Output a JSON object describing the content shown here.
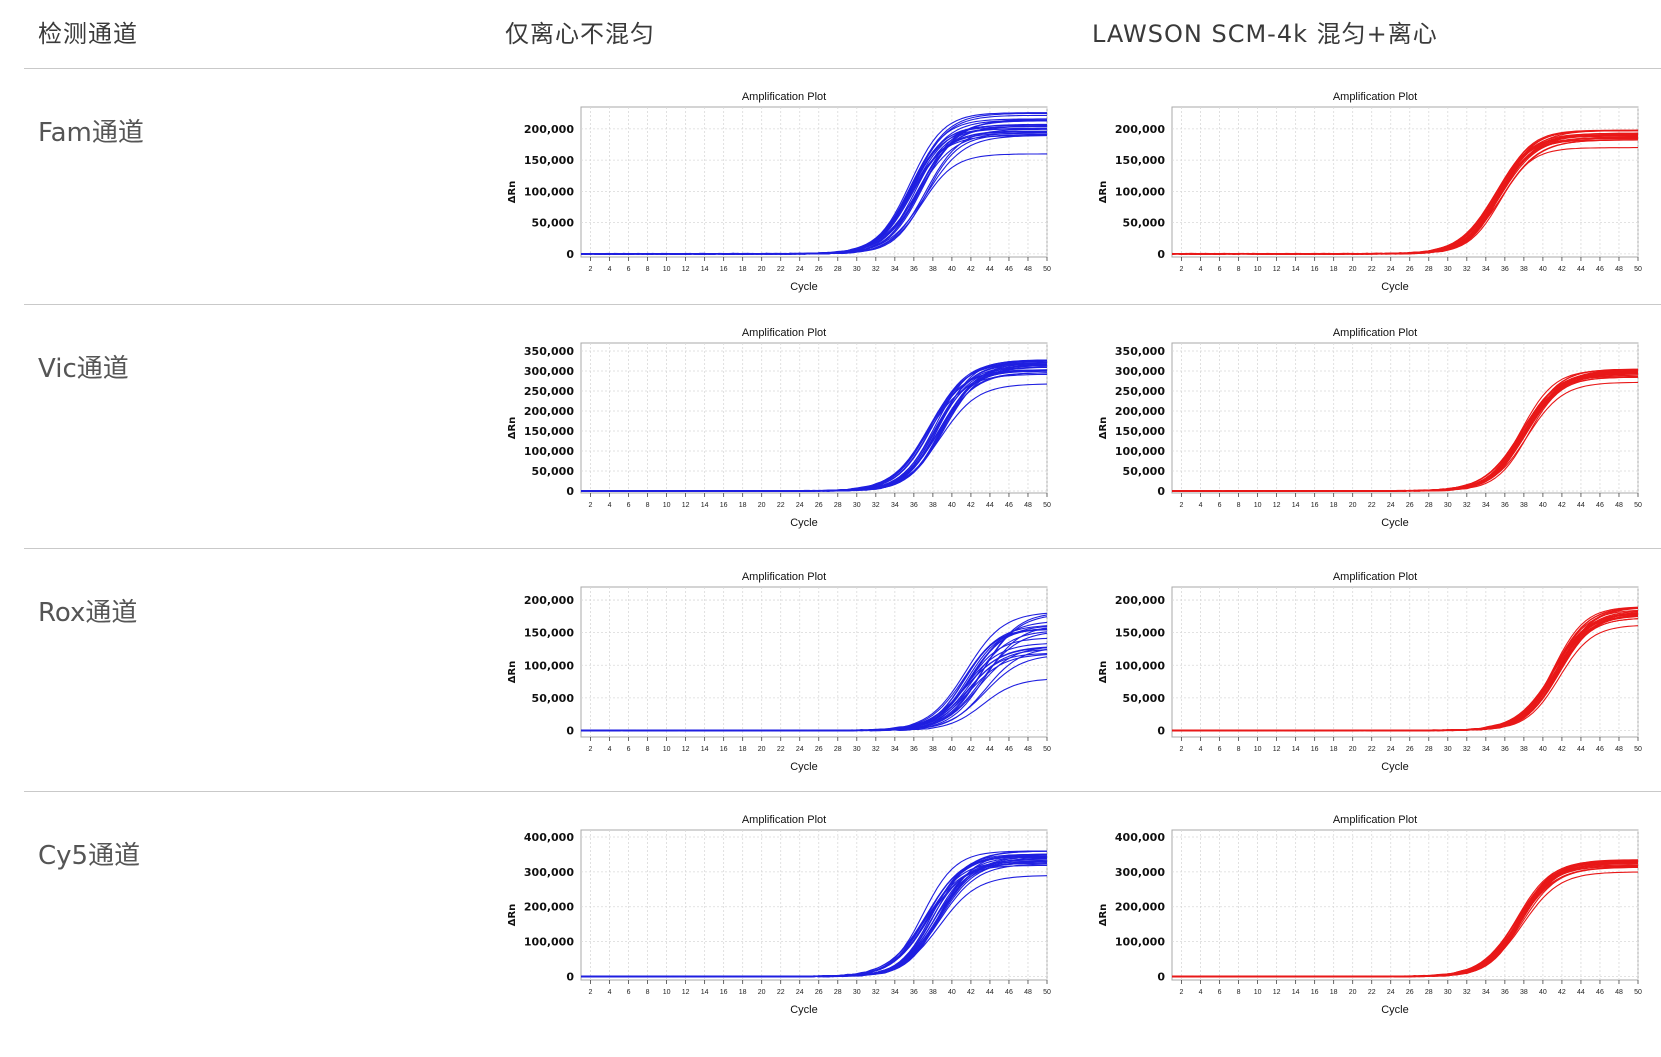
{
  "header": {
    "col1": "检测通道",
    "col2": "仅离心不混匀",
    "col3": "LAWSON SCM-4k 混匀+离心"
  },
  "rows": [
    {
      "label": "Fam通道"
    },
    {
      "label": "Vic通道"
    },
    {
      "label": "Rox通道"
    },
    {
      "label": "Cy5通道"
    }
  ],
  "colors": {
    "left": "#1f1fe0",
    "right": "#e81818"
  },
  "chart_data": [
    {
      "type": "line",
      "title": "Amplification Plot",
      "xlabel": "Cycle",
      "ylabel": "ΔRn",
      "color": "#1f1fe0",
      "xlim": [
        1,
        50
      ],
      "ylim": [
        -5000,
        235000
      ],
      "x_ticks": [
        2,
        4,
        6,
        8,
        10,
        12,
        14,
        16,
        18,
        20,
        22,
        24,
        26,
        28,
        30,
        32,
        34,
        36,
        38,
        40,
        42,
        44,
        46,
        48,
        50
      ],
      "y_ticks": [
        0,
        50000,
        100000,
        150000,
        200000
      ],
      "y_tick_labels": [
        "0",
        "50,000",
        "100,000",
        "150,000",
        "200,000"
      ],
      "curves": {
        "count": 24,
        "plateau_min": 160000,
        "plateau_max": 226000,
        "ct_min": 32.8,
        "ct_max": 34.8
      }
    },
    {
      "type": "line",
      "title": "Amplification Plot",
      "xlabel": "Cycle",
      "ylabel": "ΔRn",
      "color": "#e81818",
      "xlim": [
        1,
        50
      ],
      "ylim": [
        -5000,
        235000
      ],
      "x_ticks": [
        2,
        4,
        6,
        8,
        10,
        12,
        14,
        16,
        18,
        20,
        22,
        24,
        26,
        28,
        30,
        32,
        34,
        36,
        38,
        40,
        42,
        44,
        46,
        48,
        50
      ],
      "y_ticks": [
        0,
        50000,
        100000,
        150000,
        200000
      ],
      "y_tick_labels": [
        "0",
        "50,000",
        "100,000",
        "150,000",
        "200,000"
      ],
      "curves": {
        "count": 24,
        "plateau_min": 170000,
        "plateau_max": 198000,
        "ct_min": 32.3,
        "ct_max": 33.1
      }
    },
    {
      "type": "line",
      "title": "Amplification Plot",
      "xlabel": "Cycle",
      "ylabel": "ΔRn",
      "color": "#1f1fe0",
      "xlim": [
        1,
        50
      ],
      "ylim": [
        -5000,
        370000
      ],
      "x_ticks": [
        2,
        4,
        6,
        8,
        10,
        12,
        14,
        16,
        18,
        20,
        22,
        24,
        26,
        28,
        30,
        32,
        34,
        36,
        38,
        40,
        42,
        44,
        46,
        48,
        50
      ],
      "y_ticks": [
        0,
        50000,
        100000,
        150000,
        200000,
        250000,
        300000,
        350000
      ],
      "y_tick_labels": [
        "0",
        "50,000",
        "100,000",
        "150,000",
        "200,000",
        "250,000",
        "300,000",
        "350,000"
      ],
      "curves": {
        "count": 24,
        "plateau_min": 268000,
        "plateau_max": 328000,
        "ct_min": 34.8,
        "ct_max": 36.6
      }
    },
    {
      "type": "line",
      "title": "Amplification Plot",
      "xlabel": "Cycle",
      "ylabel": "ΔRn",
      "color": "#e81818",
      "xlim": [
        1,
        50
      ],
      "ylim": [
        -5000,
        370000
      ],
      "x_ticks": [
        2,
        4,
        6,
        8,
        10,
        12,
        14,
        16,
        18,
        20,
        22,
        24,
        26,
        28,
        30,
        32,
        34,
        36,
        38,
        40,
        42,
        44,
        46,
        48,
        50
      ],
      "y_ticks": [
        0,
        50000,
        100000,
        150000,
        200000,
        250000,
        300000,
        350000
      ],
      "y_tick_labels": [
        "0",
        "50,000",
        "100,000",
        "150,000",
        "200,000",
        "250,000",
        "300,000",
        "350,000"
      ],
      "curves": {
        "count": 24,
        "plateau_min": 272000,
        "plateau_max": 305000,
        "ct_min": 35.0,
        "ct_max": 35.9
      }
    },
    {
      "type": "line",
      "title": "Amplification Plot",
      "xlabel": "Cycle",
      "ylabel": "ΔRn",
      "color": "#1f1fe0",
      "xlim": [
        1,
        50
      ],
      "ylim": [
        -10000,
        220000
      ],
      "x_ticks": [
        2,
        4,
        6,
        8,
        10,
        12,
        14,
        16,
        18,
        20,
        22,
        24,
        26,
        28,
        30,
        32,
        34,
        36,
        38,
        40,
        42,
        44,
        46,
        48,
        50
      ],
      "y_ticks": [
        0,
        50000,
        100000,
        150000,
        200000
      ],
      "y_tick_labels": [
        "0",
        "50,000",
        "100,000",
        "150,000",
        "200,000"
      ],
      "curves": {
        "count": 24,
        "plateau_min": 80000,
        "plateau_max": 182000,
        "ct_min": 38.5,
        "ct_max": 41.0
      }
    },
    {
      "type": "line",
      "title": "Amplification Plot",
      "xlabel": "Cycle",
      "ylabel": "ΔRn",
      "color": "#e81818",
      "xlim": [
        1,
        50
      ],
      "ylim": [
        -10000,
        220000
      ],
      "x_ticks": [
        2,
        4,
        6,
        8,
        10,
        12,
        14,
        16,
        18,
        20,
        22,
        24,
        26,
        28,
        30,
        32,
        34,
        36,
        38,
        40,
        42,
        44,
        46,
        48,
        50
      ],
      "y_ticks": [
        0,
        50000,
        100000,
        150000,
        200000
      ],
      "y_tick_labels": [
        "0",
        "50,000",
        "100,000",
        "150,000",
        "200,000"
      ],
      "curves": {
        "count": 24,
        "plateau_min": 162000,
        "plateau_max": 190000,
        "ct_min": 38.3,
        "ct_max": 39.2
      }
    },
    {
      "type": "line",
      "title": "Amplification Plot",
      "xlabel": "Cycle",
      "ylabel": "ΔRn",
      "color": "#1f1fe0",
      "xlim": [
        1,
        50
      ],
      "ylim": [
        -10000,
        420000
      ],
      "x_ticks": [
        2,
        4,
        6,
        8,
        10,
        12,
        14,
        16,
        18,
        20,
        22,
        24,
        26,
        28,
        30,
        32,
        34,
        36,
        38,
        40,
        42,
        44,
        46,
        48,
        50
      ],
      "y_ticks": [
        0,
        100000,
        200000,
        300000,
        400000
      ],
      "y_tick_labels": [
        "0",
        "100,000",
        "200,000",
        "300,000",
        "400,000"
      ],
      "curves": {
        "count": 24,
        "plateau_min": 290000,
        "plateau_max": 360000,
        "ct_min": 34.3,
        "ct_max": 36.2
      }
    },
    {
      "type": "line",
      "title": "Amplification Plot",
      "xlabel": "Cycle",
      "ylabel": "ΔRn",
      "color": "#e81818",
      "xlim": [
        1,
        50
      ],
      "ylim": [
        -10000,
        420000
      ],
      "x_ticks": [
        2,
        4,
        6,
        8,
        10,
        12,
        14,
        16,
        18,
        20,
        22,
        24,
        26,
        28,
        30,
        32,
        34,
        36,
        38,
        40,
        42,
        44,
        46,
        48,
        50
      ],
      "y_ticks": [
        0,
        100000,
        200000,
        300000,
        400000
      ],
      "y_tick_labels": [
        "0",
        "100,000",
        "200,000",
        "300,000",
        "400,000"
      ],
      "curves": {
        "count": 24,
        "plateau_min": 300000,
        "plateau_max": 335000,
        "ct_min": 34.6,
        "ct_max": 35.3
      }
    }
  ]
}
